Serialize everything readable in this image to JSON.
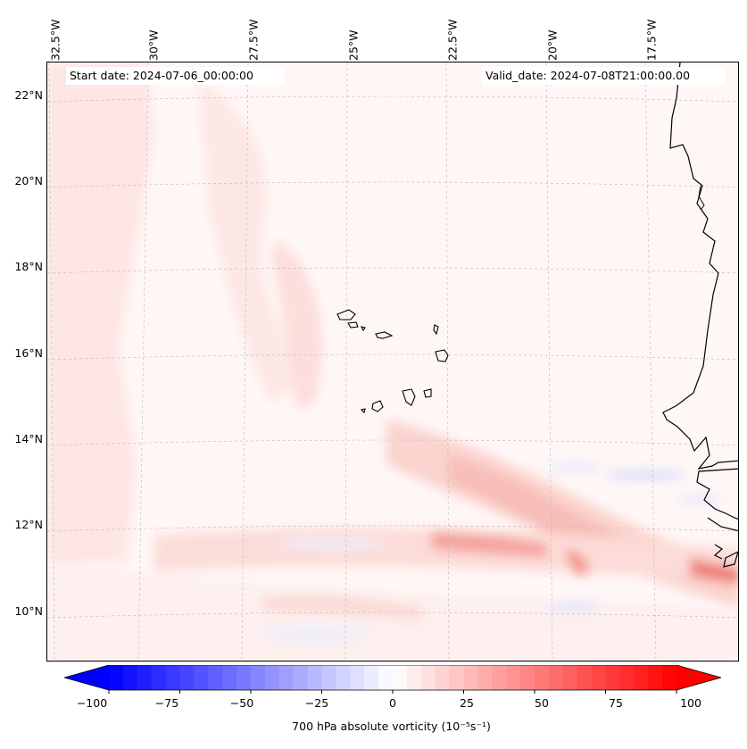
{
  "map": {
    "start_label": "Start date: 2024-07-06_00:00:00",
    "valid_label": "Valid_date: 2024-07-08T21:00:00.00",
    "lon_labels": [
      "32.5°W",
      "30°W",
      "27.5°W",
      "25°W",
      "22.5°W",
      "20°W",
      "17.5°W"
    ],
    "lat_labels": [
      "22°N",
      "20°N",
      "18°N",
      "16°N",
      "14°N",
      "12°N",
      "10°N"
    ],
    "variable": "700 hPa absolute vorticity",
    "units": "(10⁻⁵s⁻¹)"
  },
  "colorbar": {
    "tick_labels": [
      "−100",
      "−75",
      "−50",
      "−25",
      "0",
      "25",
      "50",
      "75",
      "100"
    ],
    "min": -100,
    "max": 100,
    "step": 5,
    "negative_color": "#0000ff",
    "positive_color": "#ff0000"
  },
  "colors": {
    "background": "#fff6f5",
    "coast": "#000000",
    "grid": "#b0b0b0"
  }
}
